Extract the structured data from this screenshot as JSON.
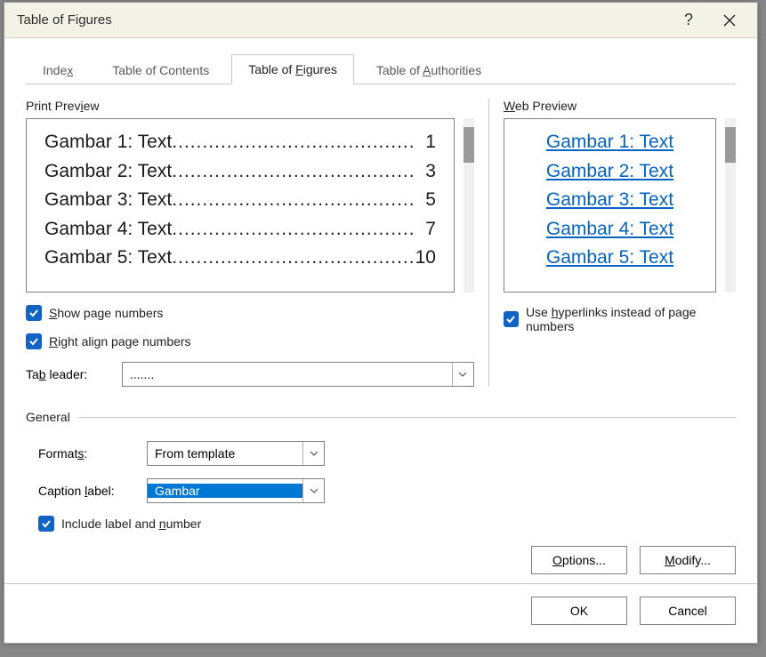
{
  "dialog": {
    "title": "Table of Figures",
    "help_icon": "?",
    "tabs": [
      "Index",
      "Table of Contents",
      "Table of Figures",
      "Table of Authorities"
    ],
    "tabs_underline_idx": [
      4,
      17,
      9,
      9
    ],
    "active_tab": 2
  },
  "print_preview": {
    "label": "Print Preview",
    "label_underline_idx": 10,
    "rows": [
      {
        "label": "Gambar 1: Text",
        "page": "1"
      },
      {
        "label": "Gambar 2: Text",
        "page": "3"
      },
      {
        "label": "Gambar 3: Text",
        "page": "5"
      },
      {
        "label": "Gambar 4: Text",
        "page": "7"
      },
      {
        "label": "Gambar 5: Text",
        "page": "10"
      }
    ],
    "dot_leader": "........................................"
  },
  "web_preview": {
    "label": "Web Preview",
    "label_underline_idx": 0,
    "rows": [
      "Gambar 1: Text",
      "Gambar 2: Text",
      "Gambar 3: Text",
      "Gambar 4: Text",
      "Gambar 5: Text"
    ]
  },
  "options_left": {
    "show_page_numbers": {
      "label": "Show page numbers",
      "underline_idx": 0,
      "checked": true
    },
    "right_align": {
      "label": "Right align page numbers",
      "underline_idx": 0,
      "checked": true
    },
    "tab_leader": {
      "label": "Tab leader:",
      "underline_idx": 2,
      "value": "......."
    }
  },
  "options_right": {
    "use_hyperlinks": {
      "label": "Use hyperlinks instead of page numbers",
      "underline_idx": 4,
      "checked": true
    }
  },
  "general": {
    "legend": "General",
    "formats": {
      "label": "Formats:",
      "underline_idx": 6,
      "value": "From template"
    },
    "caption_label": {
      "label": "Caption label:",
      "underline_idx": 8,
      "value": "Gambar",
      "selected": true
    },
    "include_label": {
      "label": "Include label and number",
      "underline_idx": 18,
      "checked": true
    },
    "options_btn": {
      "label": "Options...",
      "underline_idx": 0
    },
    "modify_btn": {
      "label": "Modify...",
      "underline_idx": 0
    }
  },
  "footer": {
    "ok": "OK",
    "cancel": "Cancel"
  },
  "colors": {
    "accent": "#1164c4",
    "link": "#0563c1",
    "select_bg": "#0078d4",
    "border": "#808080",
    "titlebar_bg": "#f3f2e6"
  }
}
